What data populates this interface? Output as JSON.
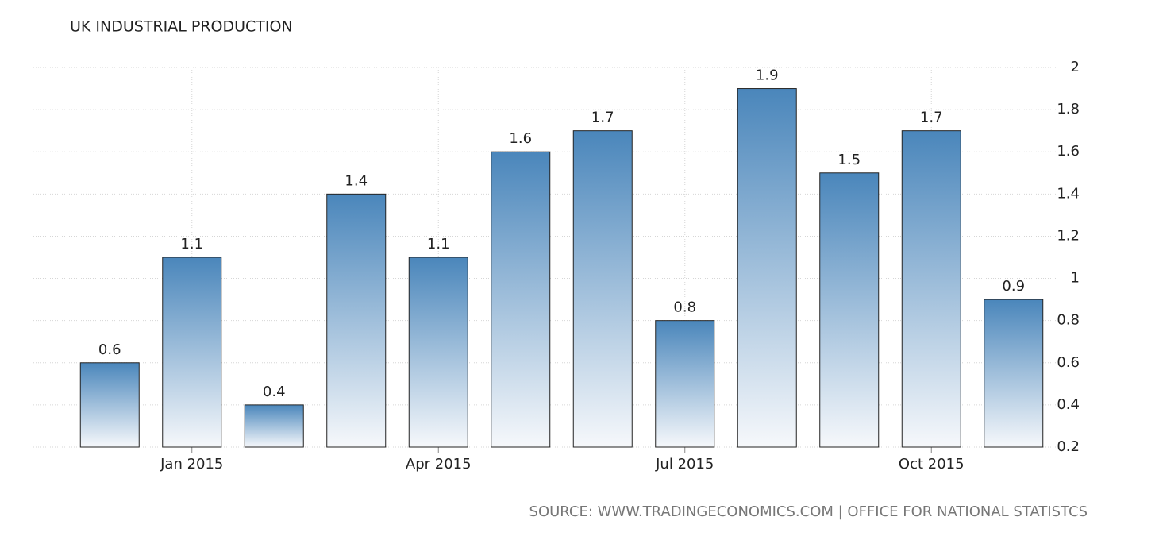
{
  "chart_data": {
    "type": "bar",
    "title": "UK INDUSTRIAL PRODUCTION",
    "categories": [
      null,
      "Jan 2015",
      null,
      null,
      "Apr 2015",
      null,
      null,
      "Jul 2015",
      null,
      null,
      "Oct 2015",
      null
    ],
    "values": [
      0.6,
      1.1,
      0.4,
      1.4,
      1.1,
      1.6,
      1.7,
      0.8,
      1.9,
      1.5,
      1.7,
      0.9
    ],
    "color": "#4a86bb",
    "ylim": [
      0.2,
      2
    ],
    "yticks": [
      0.2,
      0.4,
      0.6,
      0.8,
      1,
      1.2,
      1.4,
      1.6,
      1.8,
      2
    ],
    "grid": true,
    "source": "SOURCE:  WWW.TRADINGECONOMICS.COM  |  OFFICE FOR NATIONAL STATISTCS"
  }
}
